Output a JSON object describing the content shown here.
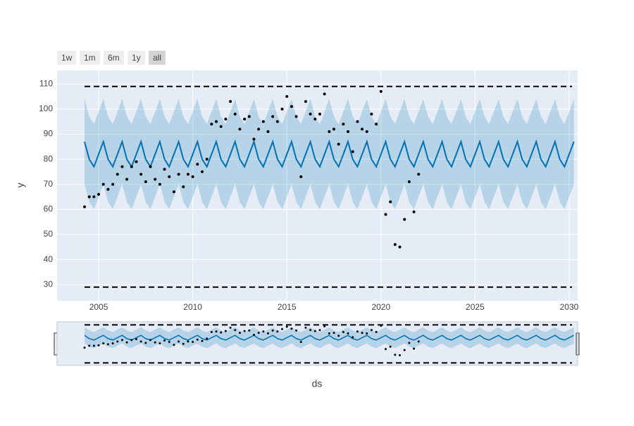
{
  "chart_data": {
    "type": "line",
    "y_label": "y",
    "x_label": "ds",
    "buttons": [
      "1w",
      "1m",
      "6m",
      "1y",
      "all"
    ],
    "active_button": 4,
    "xlim": [
      2002.79,
      2030.45
    ],
    "ylim": [
      23.6,
      115.4
    ],
    "xticks": [
      2005,
      2010,
      2015,
      2020,
      2025,
      2030
    ],
    "yticks": [
      30,
      40,
      50,
      60,
      70,
      80,
      90,
      100,
      110
    ],
    "grid": true,
    "cap": 109,
    "floor": 29,
    "actual": {
      "color": "#000000",
      "x": [
        2004.25,
        2004.5,
        2004.75,
        2005,
        2005.25,
        2005.5,
        2005.75,
        2006,
        2006.25,
        2006.5,
        2006.75,
        2007,
        2007.25,
        2007.5,
        2007.75,
        2008,
        2008.25,
        2008.5,
        2008.75,
        2009,
        2009.25,
        2009.5,
        2009.75,
        2010,
        2010.25,
        2010.5,
        2010.75,
        2011,
        2011.25,
        2011.5,
        2011.75,
        2012,
        2012.25,
        2012.5,
        2012.75,
        2013,
        2013.25,
        2013.5,
        2013.75,
        2014,
        2014.25,
        2014.5,
        2014.75,
        2015,
        2015.25,
        2015.5,
        2015.75,
        2016,
        2016.25,
        2016.5,
        2016.75,
        2017,
        2017.25,
        2017.5,
        2017.75,
        2018,
        2018.25,
        2018.5,
        2018.75,
        2019,
        2019.25,
        2019.5,
        2019.75,
        2020,
        2020.25,
        2020.5,
        2020.75,
        2021,
        2021.25,
        2021.5,
        2021.75,
        2022
      ],
      "values": [
        61,
        65,
        65,
        66,
        70,
        68,
        70,
        74,
        77,
        72,
        77,
        79,
        74,
        71,
        77,
        72,
        70,
        76,
        73,
        67,
        74,
        69,
        74,
        73,
        78,
        75,
        80,
        94,
        95,
        93,
        96,
        103,
        98,
        92,
        96,
        97,
        88,
        92,
        95,
        91,
        97,
        95,
        100,
        105,
        101,
        97,
        73,
        103,
        98,
        96,
        98,
        106,
        91,
        92,
        86,
        94,
        91,
        83,
        95,
        92,
        91,
        98,
        94,
        107,
        58,
        63,
        46,
        45,
        56,
        71,
        59,
        74
      ]
    },
    "forecast": {
      "color": "#0072B2",
      "band_color": "rgba(0,114,178,0.2)",
      "x": [
        2004.25,
        2004.5,
        2004.75,
        2005,
        2005.25,
        2005.5,
        2005.75,
        2006,
        2006.25,
        2006.5,
        2006.75,
        2007,
        2007.25,
        2007.5,
        2007.75,
        2008,
        2008.25,
        2008.5,
        2008.75,
        2009,
        2009.25,
        2009.5,
        2009.75,
        2010,
        2010.25,
        2010.5,
        2010.75,
        2011,
        2011.25,
        2011.5,
        2011.75,
        2012,
        2012.25,
        2012.5,
        2012.75,
        2013,
        2013.25,
        2013.5,
        2013.75,
        2014,
        2014.25,
        2014.5,
        2014.75,
        2015,
        2015.25,
        2015.5,
        2015.75,
        2016,
        2016.25,
        2016.5,
        2016.75,
        2017,
        2017.25,
        2017.5,
        2017.75,
        2018,
        2018.25,
        2018.5,
        2018.75,
        2019,
        2019.25,
        2019.5,
        2019.75,
        2020,
        2020.25,
        2020.5,
        2020.75,
        2021,
        2021.25,
        2021.5,
        2021.75,
        2022,
        2022.25,
        2022.5,
        2022.75,
        2023,
        2023.25,
        2023.5,
        2023.75,
        2024,
        2024.25,
        2024.5,
        2024.75,
        2025,
        2025.25,
        2025.5,
        2025.75,
        2026,
        2026.25,
        2026.5,
        2026.75,
        2027,
        2027.25,
        2027.5,
        2027.75,
        2028,
        2028.25,
        2028.5,
        2028.75,
        2029,
        2029.25,
        2029.5,
        2029.75,
        2030,
        2030.25
      ],
      "yhat": [
        87,
        80,
        77,
        82,
        87,
        80,
        77,
        82,
        87,
        80,
        77,
        82,
        87,
        80,
        77,
        82,
        87,
        80,
        77,
        82,
        87,
        80,
        77,
        82,
        87,
        80,
        77,
        82,
        87,
        80,
        77,
        82,
        87,
        80,
        77,
        82,
        87,
        80,
        77,
        82,
        87,
        80,
        77,
        82,
        87,
        80,
        77,
        82,
        87,
        80,
        77,
        82,
        87,
        80,
        77,
        82,
        87,
        80,
        77,
        82,
        87,
        80,
        77,
        82,
        87,
        80,
        77,
        82,
        87,
        80,
        77,
        82,
        87,
        80,
        77,
        82,
        87,
        80,
        77,
        82,
        87,
        80,
        77,
        82,
        87,
        80,
        77,
        82,
        87,
        80,
        77,
        82,
        87,
        80,
        77,
        82,
        87,
        80,
        77,
        82,
        87,
        80,
        77,
        82,
        87
      ],
      "upper": [
        104,
        97,
        94,
        99,
        104,
        97,
        94,
        99,
        104,
        97,
        94,
        99,
        104,
        97,
        94,
        99,
        104,
        97,
        94,
        99,
        104,
        97,
        94,
        99,
        104,
        97,
        94,
        99,
        104,
        97,
        94,
        99,
        104,
        97,
        94,
        99,
        104,
        97,
        94,
        99,
        104,
        97,
        94,
        99,
        104,
        97,
        94,
        99,
        104,
        97,
        94,
        99,
        104,
        97,
        94,
        99,
        104,
        97,
        94,
        99,
        104,
        97,
        94,
        99,
        104,
        97,
        94,
        99,
        104,
        97,
        94,
        99,
        104,
        97,
        94,
        99,
        104,
        97,
        94,
        99,
        104,
        97,
        94,
        99,
        104,
        97,
        94,
        99,
        104,
        97,
        94,
        99,
        104,
        97,
        94,
        99,
        104,
        97,
        94,
        99,
        104,
        97,
        94,
        99,
        104
      ],
      "lower": [
        70,
        63,
        60,
        65,
        70,
        63,
        60,
        65,
        70,
        63,
        60,
        65,
        70,
        63,
        60,
        65,
        70,
        63,
        60,
        65,
        70,
        63,
        60,
        65,
        70,
        63,
        60,
        65,
        70,
        63,
        60,
        65,
        70,
        63,
        60,
        65,
        70,
        63,
        60,
        65,
        70,
        63,
        60,
        65,
        70,
        63,
        60,
        65,
        70,
        63,
        60,
        65,
        70,
        63,
        60,
        65,
        70,
        63,
        60,
        65,
        70,
        63,
        60,
        65,
        70,
        63,
        60,
        65,
        70,
        63,
        60,
        65,
        70,
        63,
        60,
        65,
        70,
        63,
        60,
        65,
        70,
        63,
        60,
        65,
        70,
        63,
        60,
        65,
        70,
        63,
        60,
        65,
        70,
        63,
        60,
        65,
        70,
        63,
        60,
        65,
        70,
        63,
        60,
        65,
        70
      ]
    }
  }
}
